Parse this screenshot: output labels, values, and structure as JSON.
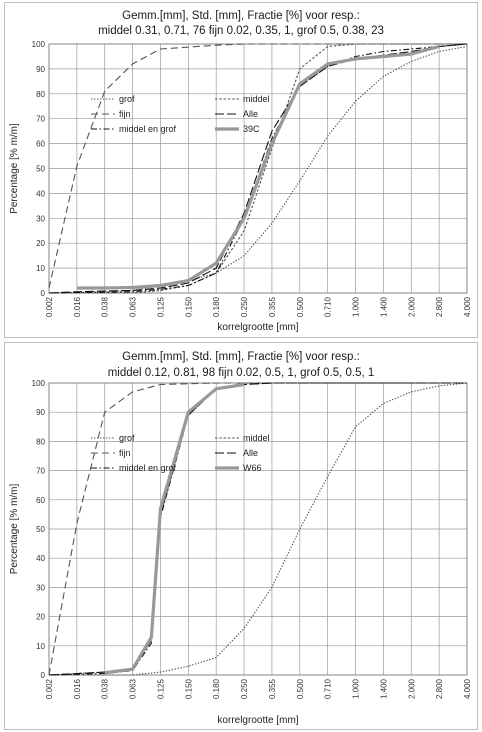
{
  "charts": [
    {
      "title_line1": "Gemm.[mm], Std. [mm], Fractie [%] voor resp.:",
      "title_line2": "middel 0.31, 0.71, 76 fijn 0.02, 0.35, 1, grof 0.5, 0.38, 23"
    },
    {
      "title_line1": "Gemm.[mm], Std. [mm], Fractie [%] voor resp.:",
      "title_line2": "middel 0.12, 0.81, 98 fijn 0.02, 0.5, 1, grof 0.5, 0.5, 1"
    }
  ],
  "chart_data": [
    {
      "type": "line",
      "title": "Gemm.[mm], Std. [mm], Fractie [%] voor resp.: middel 0.31, 0.71, 76 fijn 0.02, 0.35, 1, grof 0.5, 0.38, 23",
      "xlabel": "korrelgrootte [mm]",
      "ylabel": "Percentage [% m/m]",
      "x_ticks": [
        "0.002",
        "0.016",
        "0.038",
        "0.063",
        "0.125",
        "0.150",
        "0.180",
        "0.250",
        "0.355",
        "0.500",
        "0.710",
        "1.000",
        "1.400",
        "2.000",
        "2.800",
        "4.000"
      ],
      "y_ticks": [
        0,
        10,
        20,
        30,
        40,
        50,
        60,
        70,
        80,
        90,
        100
      ],
      "ylim": [
        0,
        100
      ],
      "grid": true,
      "legend": [
        "grof",
        "middel",
        "fijn",
        "Alle",
        "middel en grof",
        "39C"
      ],
      "series": [
        {
          "name": "grof",
          "style": "dotted",
          "color": "#555555",
          "x": [
            0.002,
            0.038,
            0.063,
            0.125,
            0.15,
            0.18,
            0.25,
            0.355,
            0.5,
            0.71,
            1.0,
            1.4,
            2.0,
            2.8,
            4.0
          ],
          "y": [
            0,
            0.5,
            1,
            3,
            5,
            8,
            15,
            28,
            45,
            63,
            77,
            87,
            93,
            97,
            99
          ]
        },
        {
          "name": "middel",
          "style": "dashed-short",
          "color": "#555555",
          "x": [
            0.002,
            0.063,
            0.125,
            0.15,
            0.18,
            0.25,
            0.355,
            0.5,
            0.71,
            1.0,
            4.0
          ],
          "y": [
            0,
            0,
            1,
            3,
            8,
            25,
            58,
            90,
            99,
            100,
            100
          ]
        },
        {
          "name": "fijn",
          "style": "dashed-long",
          "color": "#555555",
          "x": [
            0.002,
            0.016,
            0.038,
            0.063,
            0.125,
            0.18,
            0.25,
            4.0
          ],
          "y": [
            2,
            51,
            81,
            92,
            98,
            99.5,
            100,
            100
          ]
        },
        {
          "name": "Alle",
          "style": "long-dash",
          "color": "#111111",
          "x": [
            0.002,
            0.016,
            0.038,
            0.063,
            0.125,
            0.15,
            0.18,
            0.25,
            0.355,
            0.5,
            0.71,
            1.0,
            1.4,
            2.0,
            2.8,
            4.0
          ],
          "y": [
            0,
            0.5,
            0.8,
            1,
            2,
            4,
            10,
            32,
            65,
            83,
            91,
            94,
            95.5,
            97,
            99,
            100
          ]
        },
        {
          "name": "middel en grof",
          "style": "dash-dot",
          "color": "#111111",
          "x": [
            0.002,
            0.063,
            0.125,
            0.15,
            0.18,
            0.25,
            0.355,
            0.5,
            0.71,
            1.0,
            1.4,
            2.0,
            2.8,
            4.0
          ],
          "y": [
            0,
            0.5,
            1.5,
            3,
            8,
            30,
            62,
            83,
            91,
            95,
            97,
            98,
            99,
            100
          ]
        },
        {
          "name": "39C",
          "style": "thick",
          "color": "#999999",
          "x": [
            0.016,
            0.038,
            0.063,
            0.125,
            0.15,
            0.18,
            0.25,
            0.355,
            0.5,
            0.71,
            1.0,
            1.4,
            2.0,
            2.8
          ],
          "y": [
            2,
            2,
            2.2,
            3,
            5,
            12,
            30,
            60,
            84,
            92,
            94,
            95,
            96,
            99
          ]
        }
      ]
    },
    {
      "type": "line",
      "title": "Gemm.[mm], Std. [mm], Fractie [%] voor resp.: middel 0.12, 0.81, 98 fijn 0.02, 0.5, 1, grof 0.5, 0.5, 1",
      "xlabel": "korrelgrootte [mm]",
      "ylabel": "Percentage [% m/m]",
      "x_ticks": [
        "0.002",
        "0.016",
        "0.038",
        "0.063",
        "0.125",
        "0.150",
        "0.180",
        "0.250",
        "0.355",
        "0.500",
        "0.710",
        "1.000",
        "1.400",
        "2.000",
        "2.800",
        "4.000"
      ],
      "y_ticks": [
        0,
        10,
        20,
        30,
        40,
        50,
        60,
        70,
        80,
        90,
        100
      ],
      "ylim": [
        0,
        100
      ],
      "grid": true,
      "legend": [
        "grof",
        "middel",
        "fijn",
        "Alle",
        "middel en grof",
        "W66"
      ],
      "series": [
        {
          "name": "grof",
          "style": "dotted",
          "color": "#555555",
          "x": [
            0.002,
            0.063,
            0.125,
            0.15,
            0.18,
            0.25,
            0.355,
            0.5,
            0.71,
            1.0,
            1.4,
            2.0,
            2.8,
            4.0
          ],
          "y": [
            0,
            0,
            1,
            3,
            6,
            16,
            30,
            50,
            68,
            85,
            93,
            97,
            99,
            100
          ]
        },
        {
          "name": "middel",
          "style": "dashed-short",
          "color": "#555555",
          "x": [
            0.002,
            0.038,
            0.063,
            0.1,
            0.125,
            0.15,
            0.18,
            0.25,
            4.0
          ],
          "y": [
            0,
            1,
            2,
            12,
            55,
            89,
            98,
            100,
            100
          ]
        },
        {
          "name": "fijn",
          "style": "dashed-long",
          "color": "#555555",
          "x": [
            0.002,
            0.016,
            0.038,
            0.063,
            0.125,
            0.18,
            0.25,
            4.0
          ],
          "y": [
            0,
            52,
            90,
            97,
            99.5,
            100,
            100,
            100
          ]
        },
        {
          "name": "Alle",
          "style": "long-dash",
          "color": "#111111",
          "x": [
            0.002,
            0.038,
            0.063,
            0.1,
            0.125,
            0.15,
            0.18,
            0.25,
            0.355,
            4.0
          ],
          "y": [
            0,
            1,
            2,
            12,
            55,
            89,
            98,
            99.5,
            100,
            100
          ]
        },
        {
          "name": "middel en grof",
          "style": "dash-dot",
          "color": "#111111",
          "x": [
            0.002,
            0.038,
            0.063,
            0.1,
            0.125,
            0.15,
            0.18,
            0.25,
            0.355,
            4.0
          ],
          "y": [
            0,
            0.5,
            1.5,
            11,
            54,
            89,
            98,
            99.5,
            100,
            100
          ]
        },
        {
          "name": "W66",
          "style": "thick",
          "color": "#999999",
          "x": [
            0.038,
            0.063,
            0.1,
            0.125,
            0.15,
            0.18,
            0.25
          ],
          "y": [
            0.8,
            2,
            13,
            57,
            90,
            98,
            99.5
          ]
        }
      ]
    }
  ]
}
